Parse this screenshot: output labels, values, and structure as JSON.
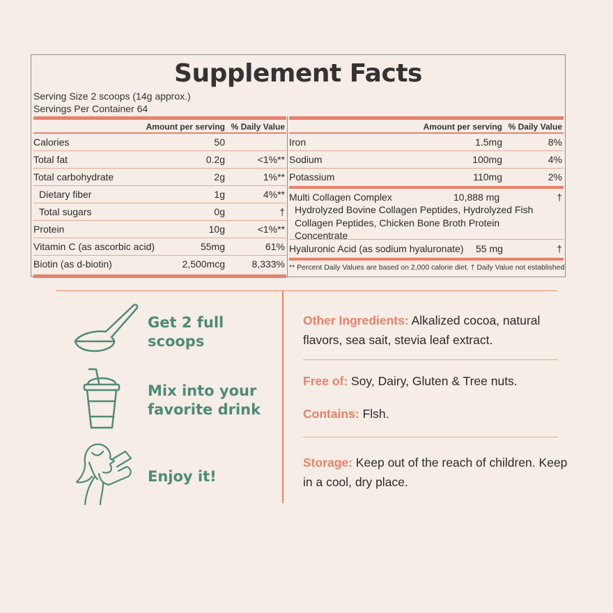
{
  "facts": {
    "title": "Supplement Facts",
    "serving_size": "Serving Size 2 scoops (14g approx.)",
    "servings_per_container": "Servings Per Container 64",
    "header_amount": "Amount per serving",
    "header_dv": "% Daily Value",
    "left_rows": [
      {
        "name": "Calories",
        "amount": "50",
        "dv": ""
      },
      {
        "name": "Total fat",
        "amount": "0.2g",
        "dv": "<1%**"
      },
      {
        "name": "Total carbohydrate",
        "amount": "2g",
        "dv": "1%**"
      },
      {
        "name": "Dietary fiber",
        "amount": "1g",
        "dv": "4%**"
      },
      {
        "name": "Total sugars",
        "amount": "0g",
        "dv": "†"
      },
      {
        "name": "Protein",
        "amount": "10g",
        "dv": "<1%**"
      },
      {
        "name": "Vitamin C (as ascorbic acid)",
        "amount": "55mg",
        "dv": "61%"
      },
      {
        "name": "Biotin (as d-biotin)",
        "amount": "2,500mcg",
        "dv": "8,333%"
      }
    ],
    "right_rows": [
      {
        "name": "Iron",
        "amount": "1.5mg",
        "dv": "8%"
      },
      {
        "name": "Sodium",
        "amount": "100mg",
        "dv": "4%"
      },
      {
        "name": "Potassium",
        "amount": "110mg",
        "dv": "2%"
      }
    ],
    "collagen": {
      "name": "Multi Collagen Complex",
      "amount": "10,888 mg",
      "dv": "†",
      "line1": "Hydrolyzed Bovine Collagen Peptides, Hydrolyzed Fish",
      "line2": "Collagen Peptides, Chicken Bone Broth Protein",
      "line3": "Concentrate"
    },
    "hyaluronic": {
      "name": "Hyaluronic Acid (as sodium hyaluronate)",
      "amount": "55 mg",
      "dv": "†"
    },
    "footnote": "** Percent Daily Values are based on 2,000 calorie diet. † Daily Value not established"
  },
  "steps": [
    {
      "icon": "scoop-icon",
      "line1": "Get 2 full",
      "line2": "scoops"
    },
    {
      "icon": "cup-icon",
      "line1": "Mix into your",
      "line2": "favorite drink"
    },
    {
      "icon": "woman-drinking-icon",
      "line1": "Enjoy it!",
      "line2": ""
    }
  ],
  "info": {
    "other_label": "Other Ingredients:",
    "other_text": " Alkalized cocoa, natural flavors, sea sait, stevia leaf extract.",
    "free_label": "Free of:",
    "free_text": " Soy, Dairy, Gluten & Tree nuts.",
    "contains_label": "Contains:",
    "contains_text": " Flsh.",
    "storage_label": "Storage:",
    "storage_text": " Keep out of the reach of children. Keep in a cool, dry place."
  },
  "colors": {
    "accent": "#e8816a",
    "green": "#4e8a78",
    "background": "#f6ede6"
  }
}
